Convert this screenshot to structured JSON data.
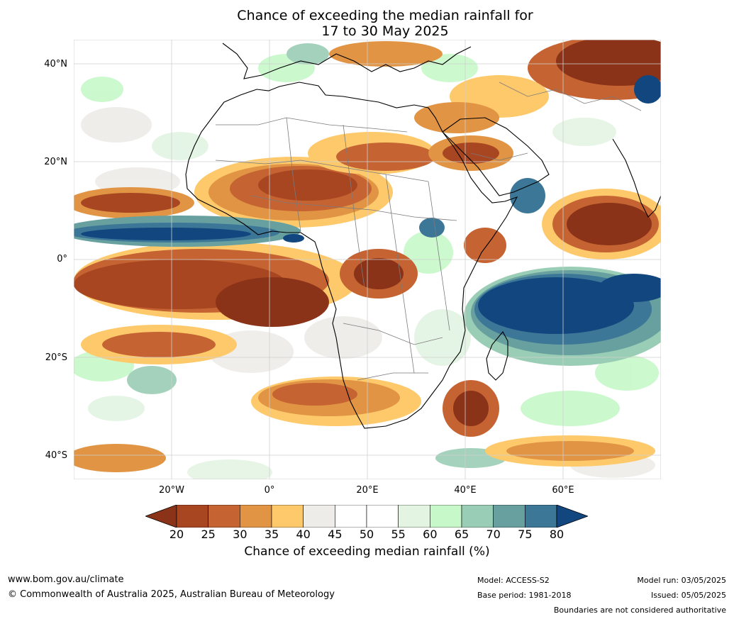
{
  "title": {
    "line1": "Chance of exceeding the median rainfall for",
    "line2": "17 to 30 May 2025"
  },
  "map": {
    "region": "Africa",
    "lat_labels": [
      "40°N",
      "20°N",
      "0°",
      "20°S",
      "40°S"
    ],
    "lon_labels": [
      "20°W",
      "0°",
      "20°E",
      "40°E",
      "60°E"
    ],
    "colors": {
      "ocean_white": "#ffffff",
      "coast": "#000000",
      "border": "#7a7a7a",
      "grid": "#cfcfcf"
    }
  },
  "legend": {
    "title": "Chance of exceeding median rainfall (%)",
    "ticks": [
      "20",
      "25",
      "30",
      "35",
      "40",
      "45",
      "50",
      "55",
      "60",
      "65",
      "70",
      "75",
      "80"
    ],
    "colors": [
      "#8b3318",
      "#a84622",
      "#c56332",
      "#e09444",
      "#fec96b",
      "#eeece8",
      "#ffffff",
      "#ffffff",
      "#e3f4e3",
      "#c7f8c9",
      "#9acdb5",
      "#67a09f",
      "#3d7798",
      "#11467f"
    ]
  },
  "footer": {
    "website": "www.bom.gov.au/climate",
    "copyright": "© Commonwealth of Australia 2025, Australian Bureau of Meteorology",
    "model": "Model: ACCESS-S2",
    "base_period": "Base period: 1981-2018",
    "model_run": "Model run: 03/05/2025",
    "issued": "Issued: 05/05/2025",
    "disclaimer": "Boundaries are not considered authoritative"
  }
}
